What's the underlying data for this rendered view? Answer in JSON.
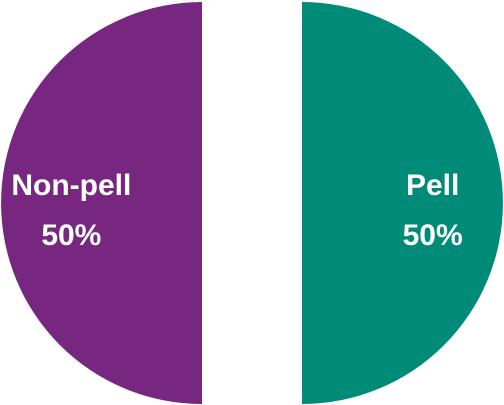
{
  "chart_data": {
    "type": "pie",
    "title": "",
    "legend": "none",
    "slices": [
      {
        "label": "Pell",
        "value": 50,
        "value_label": "50%",
        "color": "#008B79"
      },
      {
        "label": "Non-pell",
        "value": 50,
        "value_label": "50%",
        "color": "#77277F"
      }
    ]
  }
}
